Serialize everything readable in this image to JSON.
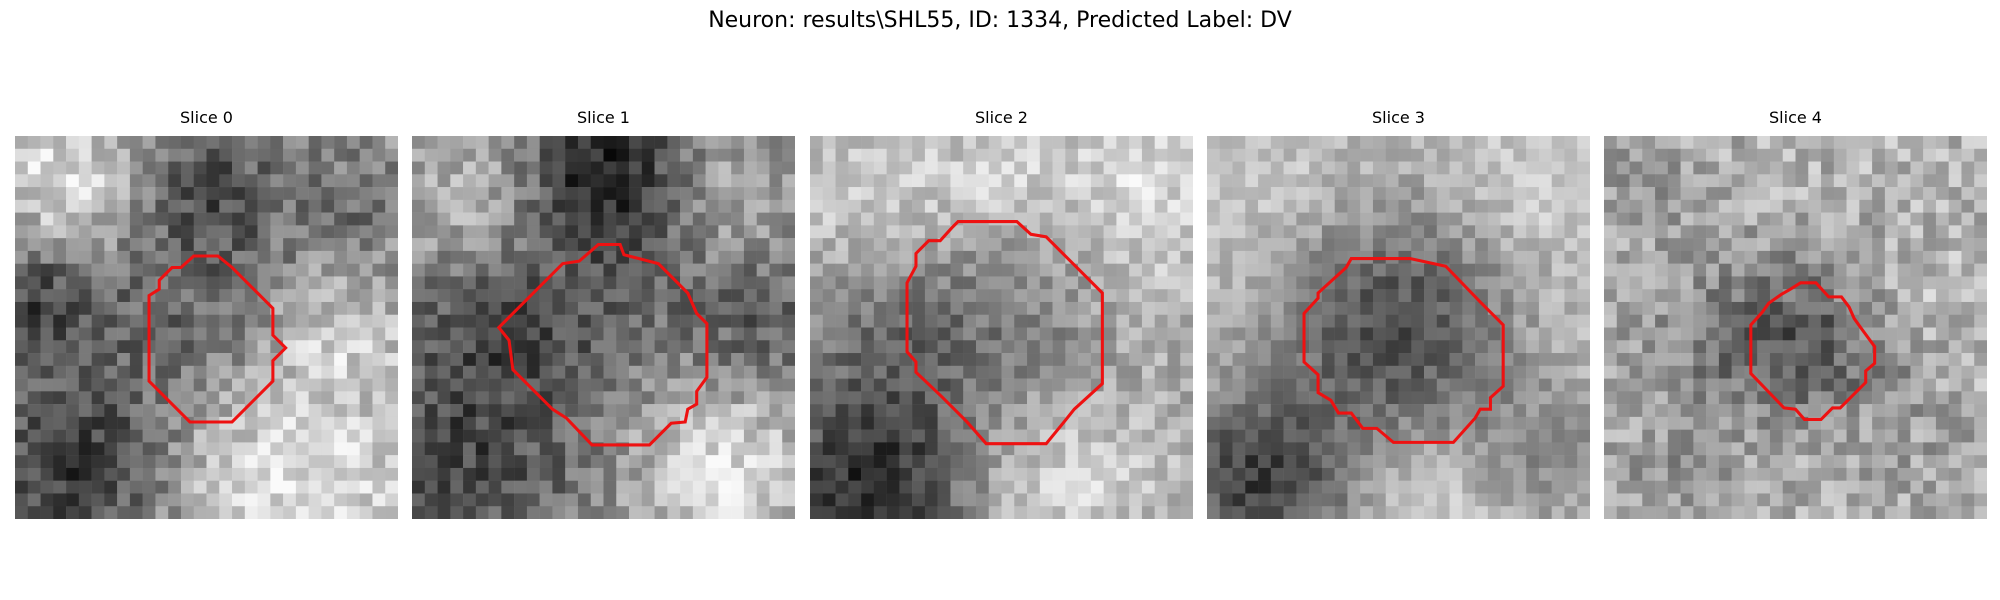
{
  "figure": {
    "title": "Neuron: results\\SHL55, ID: 1334, Predicted Label: DV"
  },
  "colors": {
    "outline": "#ee1111"
  },
  "panels": [
    {
      "title": "Slice 0"
    },
    {
      "title": "Slice 1"
    },
    {
      "title": "Slice 2"
    },
    {
      "title": "Slice 3"
    },
    {
      "title": "Slice 4"
    }
  ]
}
